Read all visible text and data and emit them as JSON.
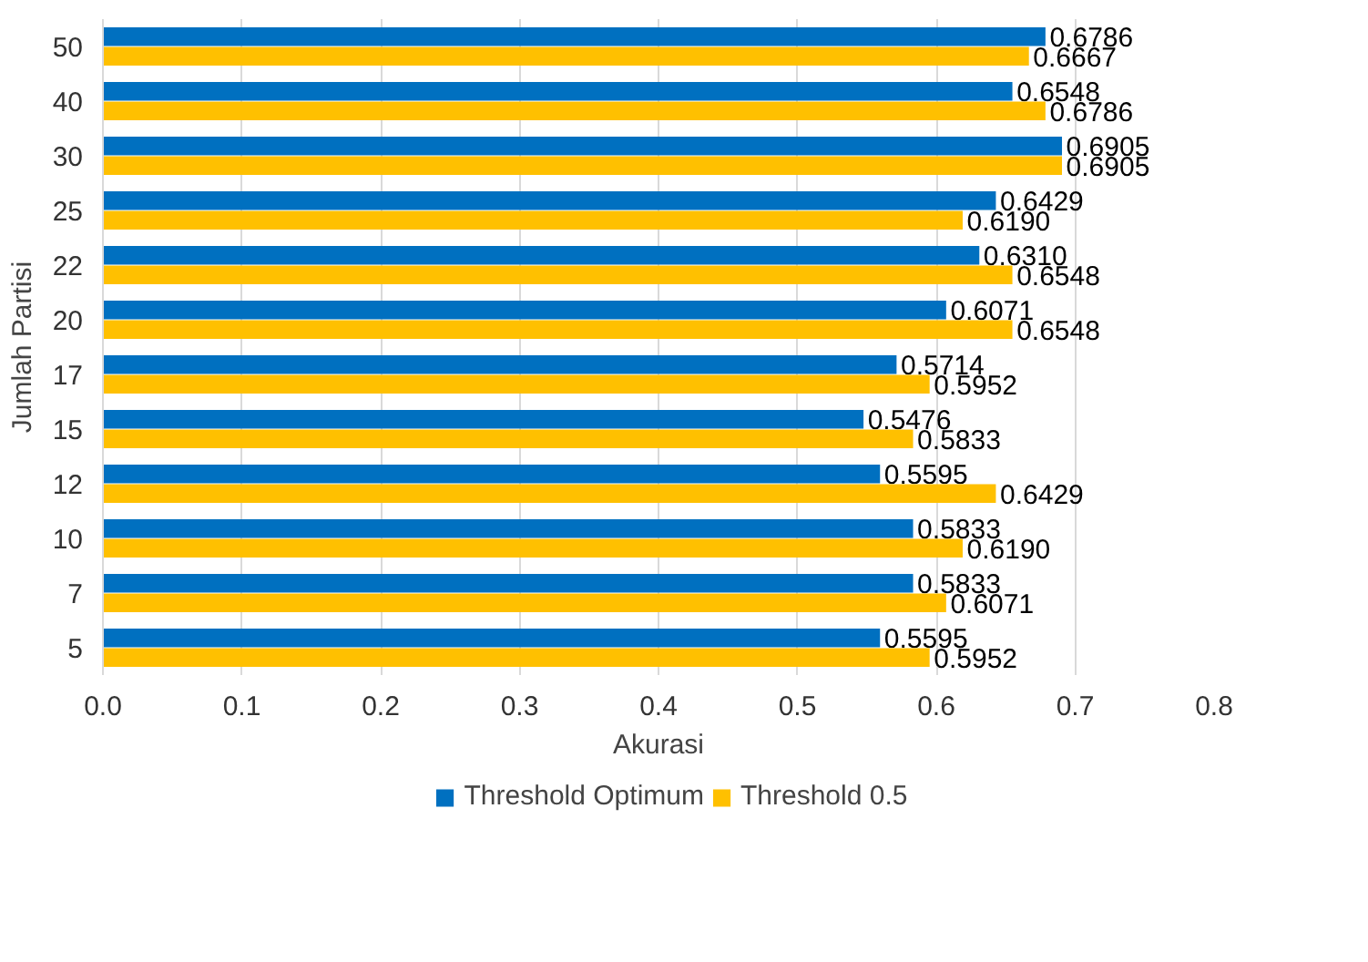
{
  "chart_data": {
    "type": "bar",
    "orientation": "horizontal",
    "xlabel": "Akurasi",
    "ylabel": "Jumlah Partisi",
    "categories": [
      "50",
      "40",
      "30",
      "25",
      "22",
      "20",
      "17",
      "15",
      "12",
      "10",
      "7",
      "5"
    ],
    "series": [
      {
        "name": "Threshold Optimum",
        "color": "#0070c0",
        "values": [
          0.6786,
          0.6548,
          0.6905,
          0.6429,
          0.631,
          0.6071,
          0.5714,
          0.5476,
          0.5595,
          0.5833,
          0.5833,
          0.5595
        ],
        "value_labels": [
          "0.6786",
          "0.6548",
          "0.6905",
          "0.6429",
          "0.6310",
          "0.6071",
          "0.5714",
          "0.5476",
          "0.5595",
          "0.5833",
          "0.5833",
          "0.5595"
        ]
      },
      {
        "name": "Threshold 0.5",
        "color": "#ffc000",
        "values": [
          0.6667,
          0.6786,
          0.6905,
          0.619,
          0.6548,
          0.6548,
          0.5952,
          0.5833,
          0.6429,
          0.619,
          0.6071,
          0.5952
        ],
        "value_labels": [
          "0.6667",
          "0.6786",
          "0.6905",
          "0.6190",
          "0.6548",
          "0.6548",
          "0.5952",
          "0.5833",
          "0.6429",
          "0.6190",
          "0.6071",
          "0.5952"
        ]
      }
    ],
    "xlim": [
      0,
      0.8
    ],
    "xticks": [
      {
        "value": 0,
        "label": "0.0"
      },
      0.1,
      0.2,
      0.3,
      0.4,
      0.5,
      0.6,
      0.7,
      0.8
    ],
    "grid": "x",
    "legend": "bottom"
  }
}
